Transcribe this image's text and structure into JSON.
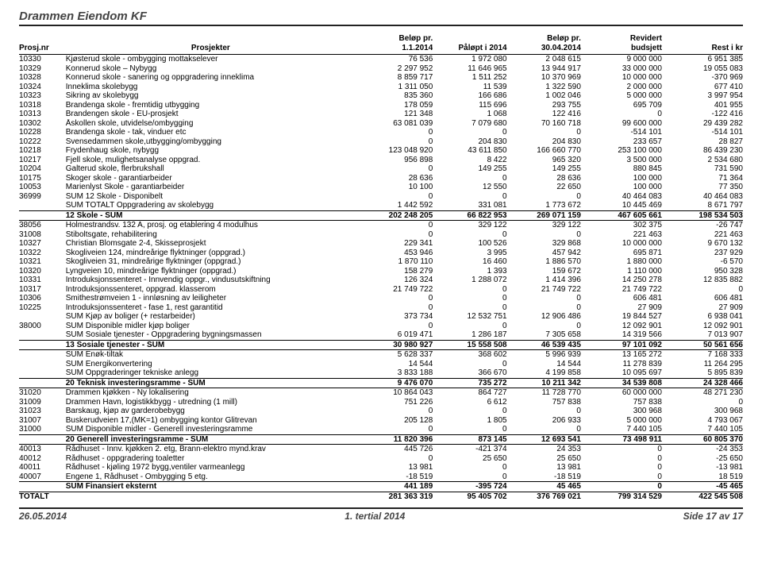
{
  "page_title": "Drammen Eiendom KF",
  "footer": {
    "left": "26.05.2014",
    "center": "1. tertial 2014",
    "right": "Side 17 av 17"
  },
  "headers": {
    "nr": "Prosj.nr",
    "desc": "Prosjekter",
    "c1a": "Beløp pr.",
    "c1b": "1.1.2014",
    "c2": "Påløpt i 2014",
    "c3a": "Beløp pr.",
    "c3b": "30.04.2014",
    "c4a": "Revidert",
    "c4b": "budsjett",
    "c5": "Rest i kr"
  },
  "rows": [
    {
      "nr": "10330",
      "desc": "Kjøsterud skole - ombygging mottakselever",
      "v": [
        "76 536",
        "1 972 080",
        "2 048 615",
        "9 000 000",
        "6 951 385"
      ]
    },
    {
      "nr": "10329",
      "desc": "Konnerud skole – Nybygg",
      "v": [
        "2 297 952",
        "11 646 965",
        "13 944 917",
        "33 000 000",
        "19 055 083"
      ]
    },
    {
      "nr": "10328",
      "desc": "Konnerud skole - sanering og oppgradering inneklima",
      "v": [
        "8 859 717",
        "1 511 252",
        "10 370 969",
        "10 000 000",
        "-370 969"
      ]
    },
    {
      "nr": "10324",
      "desc": "Inneklima skolebygg",
      "v": [
        "1 311 050",
        "11 539",
        "1 322 590",
        "2 000 000",
        "677 410"
      ]
    },
    {
      "nr": "10323",
      "desc": "Sikring av skolebygg",
      "v": [
        "835 360",
        "166 686",
        "1 002 046",
        "5 000 000",
        "3 997 954"
      ]
    },
    {
      "nr": "10318",
      "desc": "Brandenga skole - fremtidig utbygging",
      "v": [
        "178 059",
        "115 696",
        "293 755",
        "695 709",
        "401 955"
      ]
    },
    {
      "nr": "10313",
      "desc": "Brandengen skole - EU-prosjekt",
      "v": [
        "121 348",
        "1 068",
        "122 416",
        "0",
        "-122 416"
      ]
    },
    {
      "nr": "10302",
      "desc": "Åskollen skole, utvidelse/ombygging",
      "v": [
        "63 081 039",
        "7 079 680",
        "70 160 718",
        "99 600 000",
        "29 439 282"
      ]
    },
    {
      "nr": "10228",
      "desc": "Brandenga skole - tak, vinduer etc",
      "v": [
        "0",
        "0",
        "0",
        "-514 101",
        "-514 101"
      ]
    },
    {
      "nr": "10222",
      "desc": "Svensedammen skole,utbygging/ombygging",
      "v": [
        "0",
        "204 830",
        "204 830",
        "233 657",
        "28 827"
      ]
    },
    {
      "nr": "10218",
      "desc": "Frydenhaug skole, nybygg",
      "v": [
        "123 048 920",
        "43 611 850",
        "166 660 770",
        "253 100 000",
        "86 439 230"
      ]
    },
    {
      "nr": "10217",
      "desc": "Fjell skole, mulighetsanalyse oppgrad.",
      "v": [
        "956 898",
        "8 422",
        "965 320",
        "3 500 000",
        "2 534 680"
      ]
    },
    {
      "nr": "10204",
      "desc": "Galterud skole, flerbrukshall",
      "v": [
        "0",
        "149 255",
        "149 255",
        "880 845",
        "731 590"
      ]
    },
    {
      "nr": "10175",
      "desc": "Skoger skole - garantiarbeider",
      "v": [
        "28 636",
        "0",
        "28 636",
        "100 000",
        "71 364"
      ]
    },
    {
      "nr": "10053",
      "desc": "Marienlyst Skole - garantiarbeider",
      "v": [
        "10 100",
        "12 550",
        "22 650",
        "100 000",
        "77 350"
      ]
    },
    {
      "nr": "36999",
      "desc": "SUM 12 Skole - Disponibelt",
      "v": [
        "0",
        "0",
        "0",
        "40 464 083",
        "40 464 083"
      ]
    },
    {
      "nr": "",
      "desc": "SUM TOTALT Oppgradering av skolebygg",
      "v": [
        "1 442 592",
        "331 081",
        "1 773 672",
        "10 445 469",
        "8 671 797"
      ],
      "uline": true
    },
    {
      "nr": "",
      "desc": "12 Skole - SUM",
      "v": [
        "202 248 205",
        "66 822 953",
        "269 071 159",
        "467 605 661",
        "198 534 503"
      ],
      "bold": true,
      "uline": true
    },
    {
      "nr": "38056",
      "desc": "Holmestrandsv. 132 A, prosj. og etablering 4 modulhus",
      "v": [
        "0",
        "329 122",
        "329 122",
        "302 375",
        "-26 747"
      ]
    },
    {
      "nr": "31008",
      "desc": "Stiboltsgate, rehabilitering",
      "v": [
        "0",
        "0",
        "0",
        "221 463",
        "221 463"
      ]
    },
    {
      "nr": "10327",
      "desc": "Christian Blomsgate 2-4, Skisseprosjekt",
      "v": [
        "229 341",
        "100 526",
        "329 868",
        "10 000 000",
        "9 670 132"
      ]
    },
    {
      "nr": "10322",
      "desc": "Skogliveien 124, mindreårige flyktninger (oppgrad.)",
      "v": [
        "453 946",
        "3 995",
        "457 942",
        "695 871",
        "237 929"
      ]
    },
    {
      "nr": "10321",
      "desc": "Skogliveien 31, mindreårige flyktninger (oppgrad.)",
      "v": [
        "1 870 110",
        "16 460",
        "1 886 570",
        "1 880 000",
        "-6 570"
      ]
    },
    {
      "nr": "10320",
      "desc": "Lyngveien 10, mindreårige flyktninger (oppgrad.)",
      "v": [
        "158 279",
        "1 393",
        "159 672",
        "1 110 000",
        "950 328"
      ]
    },
    {
      "nr": "10331",
      "desc": "Introduksjonssenteret - Innvendig oppgr., vindusutskiftning",
      "v": [
        "126 324",
        "1 288 072",
        "1 414 396",
        "14 250 278",
        "12 835 882"
      ]
    },
    {
      "nr": "10317",
      "desc": "Introduksjonssenteret, oppgrad. klasserom",
      "v": [
        "21 749 722",
        "0",
        "21 749 722",
        "21 749 722",
        "0"
      ]
    },
    {
      "nr": "10306",
      "desc": "Smithestrømveien 1 - innløsning av leiligheter",
      "v": [
        "0",
        "0",
        "0",
        "606 481",
        "606 481"
      ]
    },
    {
      "nr": "10225",
      "desc": "Introduksjonssenteret - fase 1, rest garantitid",
      "v": [
        "0",
        "0",
        "0",
        "27 909",
        "27 909"
      ]
    },
    {
      "nr": "",
      "desc": "SUM Kjøp av boliger (+ restarbeider)",
      "v": [
        "373 734",
        "12 532 751",
        "12 906 486",
        "19 844 527",
        "6 938 041"
      ]
    },
    {
      "nr": "38000",
      "desc": "SUM Disponible midler kjøp boliger",
      "v": [
        "0",
        "0",
        "0",
        "12 092 901",
        "12 092 901"
      ]
    },
    {
      "nr": "",
      "desc": "SUM Sosiale tjenester - Oppgradering bygningsmassen",
      "v": [
        "6 019 471",
        "1 286 187",
        "7 305 658",
        "14 319 566",
        "7 013 907"
      ],
      "uline": true
    },
    {
      "nr": "",
      "desc": "13 Sosiale tjenester - SUM",
      "v": [
        "30 980 927",
        "15 558 508",
        "46 539 435",
        "97 101 092",
        "50 561 656"
      ],
      "bold": true,
      "uline": true
    },
    {
      "nr": "",
      "desc": "SUM Enøk-tiltak",
      "v": [
        "5 628 337",
        "368 602",
        "5 996 939",
        "13 165 272",
        "7 168 333"
      ]
    },
    {
      "nr": "",
      "desc": "SUM Energikonvertering",
      "v": [
        "14 544",
        "0",
        "14 544",
        "11 278 839",
        "11 264 295"
      ]
    },
    {
      "nr": "",
      "desc": "SUM Oppgraderinger tekniske anlegg",
      "v": [
        "3 833 188",
        "366 670",
        "4 199 858",
        "10 095 697",
        "5 895 839"
      ],
      "uline": true
    },
    {
      "nr": "",
      "desc": "20 Teknisk investeringsramme - SUM",
      "v": [
        "9 476 070",
        "735 272",
        "10 211 342",
        "34 539 808",
        "24 328 466"
      ],
      "bold": true,
      "uline": true
    },
    {
      "nr": "31020",
      "desc": "Drammen kjøkken - Ny lokalisering",
      "v": [
        "10 864 043",
        "864 727",
        "11 728 770",
        "60 000 000",
        "48 271 230"
      ]
    },
    {
      "nr": "31009",
      "desc": "Drammen Havn, logistikkbygg - utredning (1 mill)",
      "v": [
        "751 226",
        "6 612",
        "757 838",
        "757 838",
        "0"
      ]
    },
    {
      "nr": "31023",
      "desc": "Barskaug, kjøp av garderobebygg",
      "v": [
        "0",
        "0",
        "0",
        "300 968",
        "300 968"
      ]
    },
    {
      "nr": "31007",
      "desc": "Buskerudveien 17,(MK=1) ombygging kontor Glitrevan",
      "v": [
        "205 128",
        "1 805",
        "206 933",
        "5 000 000",
        "4 793 067"
      ]
    },
    {
      "nr": "31000",
      "desc": "SUM Disponible midler - Generell investeringsramme",
      "v": [
        "0",
        "0",
        "0",
        "7 440 105",
        "7 440 105"
      ],
      "uline": true
    },
    {
      "nr": "",
      "desc": "20 Generell investeringsramme - SUM",
      "v": [
        "11 820 396",
        "873 145",
        "12 693 541",
        "73 498 911",
        "60 805 370"
      ],
      "bold": true,
      "uline": true
    },
    {
      "nr": "40013",
      "desc": "Rådhuset - Innv. kjøkken 2. etg, Brann-elektro mynd.krav",
      "v": [
        "445 726",
        "-421 374",
        "24 353",
        "0",
        "-24 353"
      ]
    },
    {
      "nr": "40012",
      "desc": "Rådhuset - oppgradering toaletter",
      "v": [
        "0",
        "25 650",
        "25 650",
        "0",
        "-25 650"
      ]
    },
    {
      "nr": "40011",
      "desc": "Rådhuset - kjøling 1972 bygg,ventiler varmeanlegg",
      "v": [
        "13 981",
        "0",
        "13 981",
        "0",
        "-13 981"
      ]
    },
    {
      "nr": "40007",
      "desc": "Engene 1, Rådhuset - Ombygging 5 etg.",
      "v": [
        "-18 519",
        "0",
        "-18 519",
        "0",
        "18 519"
      ],
      "uline": true
    },
    {
      "nr": "",
      "desc": "SUM Finansiert eksternt",
      "v": [
        "441 189",
        "-395 724",
        "45 465",
        "0",
        "-45 465"
      ],
      "bold": true,
      "uline": true
    },
    {
      "nr": "TOTALT",
      "desc": "",
      "v": [
        "281 363 319",
        "95 405 702",
        "376 769 021",
        "799 314 529",
        "422 545 508"
      ],
      "bold": true
    }
  ]
}
